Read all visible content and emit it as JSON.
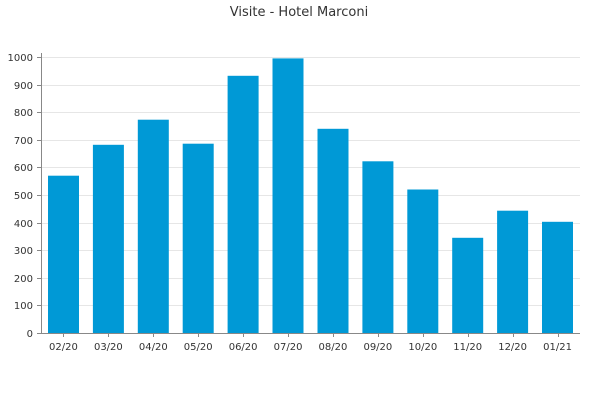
{
  "chart_data": {
    "type": "bar",
    "title": "Visite - Hotel Marconi",
    "xlabel": "",
    "ylabel": "",
    "categories": [
      "02/20",
      "03/20",
      "04/20",
      "05/20",
      "06/20",
      "07/20",
      "08/20",
      "09/20",
      "10/20",
      "11/20",
      "12/20",
      "01/21"
    ],
    "values": [
      570,
      682,
      773,
      686,
      932,
      995,
      740,
      622,
      520,
      345,
      443,
      403
    ],
    "ylim": [
      0,
      1000
    ],
    "yticks": [
      0,
      100,
      200,
      300,
      400,
      500,
      600,
      700,
      800,
      900,
      1000
    ],
    "grid": true,
    "legend": "none",
    "colors": {
      "bar": "#0099d6"
    }
  }
}
